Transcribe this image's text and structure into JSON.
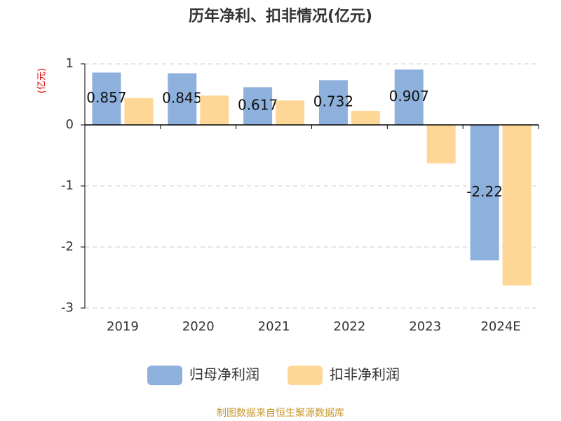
{
  "chart_data": {
    "type": "bar",
    "title": "历年净利、扣非情况(亿元)",
    "y_label": "(亿元)",
    "categories": [
      "2019",
      "2020",
      "2021",
      "2022",
      "2023",
      "2024E"
    ],
    "series": [
      {
        "name": "归母净利润",
        "color": "#8eb0dc",
        "values": [
          0.857,
          0.845,
          0.617,
          0.732,
          0.907,
          -2.22
        ],
        "show_labels": true
      },
      {
        "name": "扣非净利润",
        "color": "#fed797",
        "values": [
          0.44,
          0.48,
          0.4,
          0.23,
          -0.63,
          -2.63
        ],
        "show_labels": false
      }
    ],
    "ylim": [
      -3,
      1
    ],
    "yticks": [
      -3,
      -2,
      -1,
      0,
      1
    ],
    "grid": true,
    "source": "制图数据来自恒生聚源数据库"
  }
}
